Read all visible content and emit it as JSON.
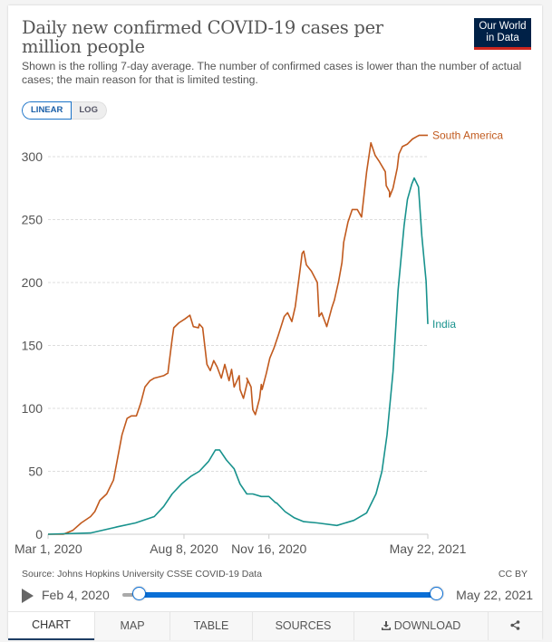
{
  "header": {
    "title": "Daily new confirmed COVID-19 cases per million people",
    "subtitle": "Shown is the rolling 7-day average. The number of confirmed cases is lower than the number of actual cases; the main reason for that is limited testing.",
    "logo_line1": "Our World",
    "logo_line2": "in Data"
  },
  "scale_toggle": {
    "linear": "LINEAR",
    "log": "LOG",
    "selected": "LINEAR"
  },
  "chart_data": {
    "type": "line",
    "title": "Daily new confirmed COVID-19 cases per million people",
    "xlabel": "",
    "ylabel": "",
    "x_range": [
      "2020-03-01",
      "2021-05-22"
    ],
    "ylim": [
      0,
      320
    ],
    "y_ticks": [
      0,
      50,
      100,
      150,
      200,
      250,
      300
    ],
    "x_tick_labels": [
      "Mar 1, 2020",
      "Aug 8, 2020",
      "Nov 16, 2020",
      "May 22, 2021"
    ],
    "x_tick_days": [
      0,
      160,
      260,
      447
    ],
    "grid": true,
    "x_unit": "days since Mar 1, 2020",
    "series": [
      {
        "name": "South America",
        "color": "#c15a1e",
        "x": [
          0,
          18,
          29,
          39,
          50,
          55,
          61,
          69,
          77,
          82,
          87,
          93,
          98,
          104,
          109,
          114,
          120,
          125,
          136,
          141,
          146,
          148,
          154,
          161,
          167,
          171,
          177,
          178,
          182,
          187,
          191,
          195,
          199,
          204,
          208,
          213,
          216,
          219,
          225,
          226,
          230,
          235,
          234,
          239,
          241,
          244,
          249,
          251,
          252,
          257,
          261,
          266,
          271,
          278,
          282,
          287,
          291,
          297,
          299,
          301,
          304,
          310,
          317,
          319,
          322,
          327,
          328,
          334,
          337,
          342,
          346,
          348,
          353,
          358,
          364,
          369,
          375,
          380,
          385,
          390,
          397,
          398,
          402,
          402,
          406,
          411,
          413,
          417,
          423,
          429,
          434,
          437,
          441,
          443,
          447
        ],
        "values": [
          0,
          0,
          3,
          9,
          14,
          18,
          27,
          32,
          43,
          61,
          79,
          92,
          94,
          94,
          104,
          117,
          122,
          124,
          126,
          128,
          155,
          164,
          168,
          171,
          174,
          165,
          164,
          167,
          164,
          135,
          130,
          138,
          133,
          124,
          135,
          122,
          131,
          117,
          126,
          115,
          108,
          122,
          124,
          117,
          99,
          95,
          108,
          119,
          115,
          128,
          140,
          148,
          158,
          173,
          176,
          169,
          181,
          212,
          223,
          225,
          214,
          209,
          200,
          173,
          176,
          167,
          165,
          180,
          186,
          201,
          216,
          232,
          248,
          258,
          258,
          252,
          288,
          311,
          301,
          296,
          288,
          277,
          272,
          268,
          275,
          291,
          302,
          308,
          310,
          314,
          316,
          317,
          317,
          317,
          317
        ]
      },
      {
        "name": "India",
        "color": "#18928d",
        "x": [
          0,
          50,
          82,
          103,
          125,
          136,
          146,
          157,
          168,
          178,
          189,
          197,
          202,
          210,
          219,
          226,
          234,
          241,
          251,
          260,
          268,
          269,
          279,
          290,
          301,
          317,
          340,
          360,
          375,
          386,
          393,
          399,
          406,
          412,
          419,
          423,
          428,
          431,
          436,
          440,
          445,
          447
        ],
        "values": [
          0,
          1,
          6,
          9,
          14,
          22,
          32,
          40,
          46,
          50,
          58,
          67,
          67,
          59,
          52,
          40,
          32,
          32,
          30,
          30,
          25,
          25,
          18,
          13,
          10,
          9,
          7,
          11,
          17,
          32,
          50,
          79,
          129,
          194,
          245,
          266,
          278,
          283,
          276,
          237,
          201,
          167
        ]
      }
    ]
  },
  "source": "Source: Johns Hopkins University CSSE COVID-19 Data",
  "license": "CC BY",
  "timeline": {
    "start": "Feb 4, 2020",
    "end": "May 22, 2021",
    "start_fraction": 0.0,
    "end_fraction": 1.0
  },
  "tabs": [
    {
      "label": "CHART",
      "icon": "",
      "active": true
    },
    {
      "label": "MAP",
      "icon": "",
      "active": false
    },
    {
      "label": "TABLE",
      "icon": "",
      "active": false
    },
    {
      "label": "SOURCES",
      "icon": "",
      "active": false
    },
    {
      "label": "DOWNLOAD",
      "icon": "download-icon",
      "active": false
    },
    {
      "label": "",
      "icon": "share-icon",
      "active": false
    }
  ]
}
